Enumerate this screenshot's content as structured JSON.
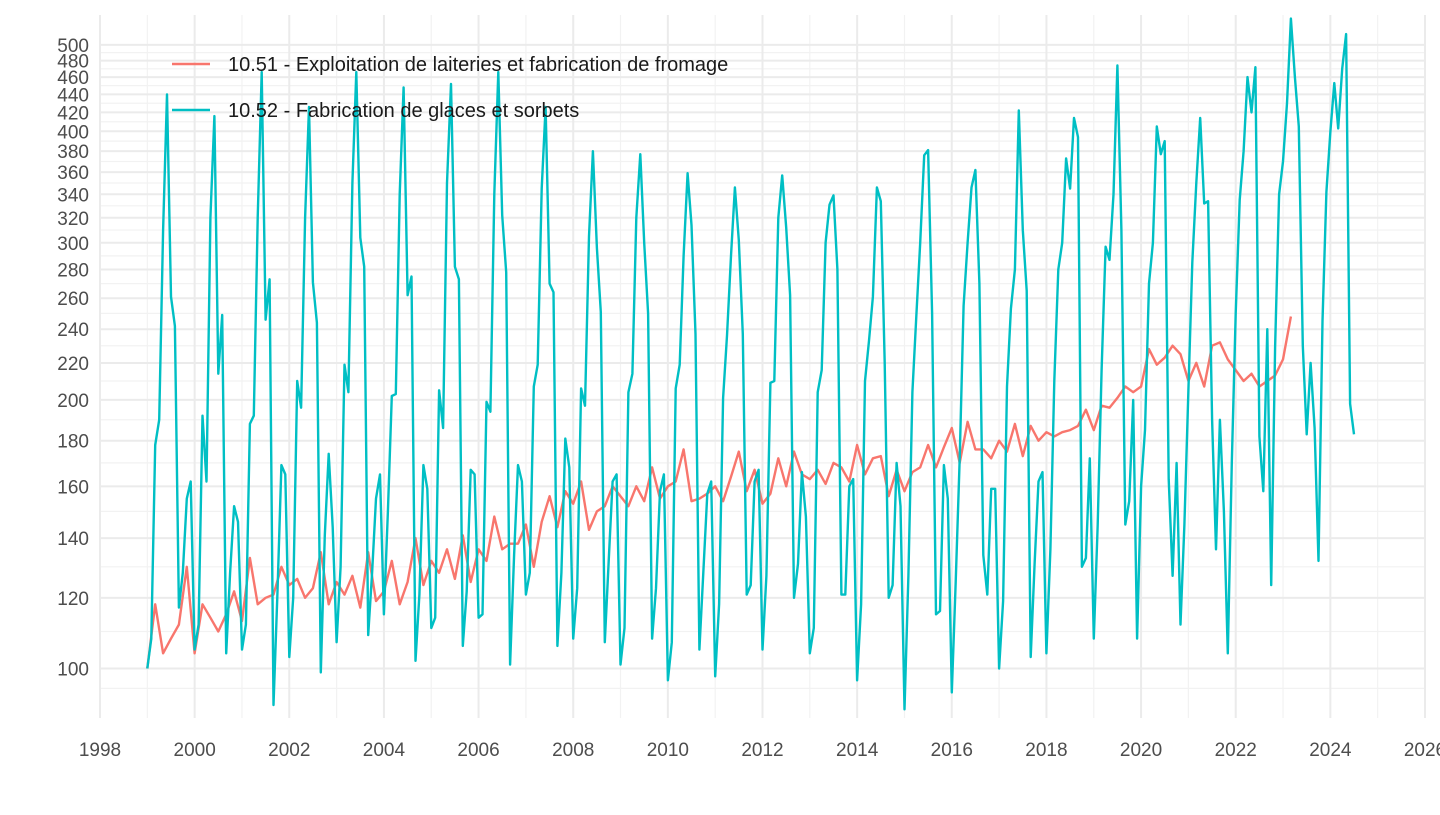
{
  "chart_data": {
    "type": "line",
    "title": "",
    "xlabel": "",
    "ylabel": "",
    "y_scale": "log",
    "xlim": [
      1998,
      2026
    ],
    "ylim": [
      88,
      540
    ],
    "x_ticks": [
      1998,
      2000,
      2002,
      2004,
      2006,
      2008,
      2010,
      2012,
      2014,
      2016,
      2018,
      2020,
      2022,
      2024,
      2026
    ],
    "x_tick_labels": [
      "1998",
      "2000",
      "2002",
      "2004",
      "2006",
      "2008",
      "2010",
      "2012",
      "2014",
      "2016",
      "2018",
      "2020",
      "2022",
      "2024",
      "2026"
    ],
    "y_ticks": [
      100,
      120,
      140,
      160,
      180,
      200,
      220,
      240,
      260,
      280,
      300,
      320,
      340,
      360,
      380,
      400,
      420,
      440,
      460,
      480,
      500
    ],
    "y_tick_labels": [
      "100",
      "120",
      "140",
      "160",
      "180",
      "200",
      "220",
      "240",
      "260",
      "280",
      "300",
      "320",
      "340",
      "360",
      "380",
      "400",
      "420",
      "440",
      "460",
      "480",
      "500"
    ],
    "grid": true,
    "legend_position": "top-left",
    "series": [
      {
        "name": "10.51 - Exploitation de laiteries et fabrication de fromage",
        "color": "#F8766D",
        "start_year": 1999,
        "step_months": 2,
        "values": [
          100,
          118,
          104,
          108,
          112,
          130,
          104,
          118,
          114,
          110,
          115,
          122,
          113,
          133,
          118,
          120,
          121,
          130,
          124,
          126,
          120,
          123,
          135,
          118,
          125,
          121,
          127,
          117,
          135,
          119,
          122,
          132,
          118,
          125,
          140,
          124,
          132,
          128,
          136,
          126,
          141,
          125,
          136,
          132,
          148,
          136,
          138,
          138,
          145,
          130,
          146,
          156,
          144,
          158,
          153,
          162,
          143,
          150,
          152,
          160,
          156,
          152,
          160,
          154,
          168,
          155,
          160,
          162,
          176,
          154,
          155,
          157,
          160,
          154,
          164,
          175,
          158,
          167,
          153,
          157,
          172,
          160,
          175,
          165,
          163,
          167,
          161,
          170,
          168,
          162,
          178,
          165,
          172,
          173,
          156,
          167,
          158,
          166,
          168,
          178,
          168,
          177,
          186,
          170,
          189,
          176,
          176,
          172,
          180,
          175,
          188,
          173,
          187,
          180,
          184,
          182,
          184,
          185,
          187,
          195,
          185,
          197,
          196,
          201,
          207,
          204,
          207,
          228,
          219,
          223,
          230,
          225,
          210,
          220,
          207,
          230,
          232,
          222,
          216,
          210,
          214,
          207,
          210,
          213,
          222,
          248
        ]
      },
      {
        "name": "10.52 - Fabrication de glaces et sorbets",
        "color": "#00BFC4",
        "start_year": 1999,
        "step_months": 1,
        "values": [
          100,
          108,
          178,
          190,
          310,
          440,
          261,
          242,
          117,
          128,
          155,
          162,
          105,
          112,
          192,
          162,
          320,
          416,
          214,
          249,
          104,
          128,
          152,
          146,
          105,
          112,
          188,
          192,
          320,
          466,
          246,
          273,
          91,
          122,
          169,
          165,
          103,
          120,
          210,
          196,
          320,
          426,
          271,
          244,
          99,
          141,
          174,
          144,
          107,
          130,
          219,
          204,
          350,
          466,
          304,
          282,
          109,
          128,
          155,
          165,
          115,
          150,
          202,
          203,
          340,
          448,
          262,
          275,
          102,
          121,
          169,
          159,
          111,
          114,
          205,
          186,
          350,
          452,
          282,
          273,
          106,
          122,
          167,
          165,
          114,
          115,
          199,
          194,
          340,
          466,
          322,
          278,
          101,
          134,
          169,
          162,
          121,
          128,
          207,
          219,
          345,
          426,
          270,
          264,
          106,
          128,
          181,
          168,
          108,
          123,
          206,
          197,
          305,
          380,
          296,
          251,
          107,
          132,
          162,
          165,
          101,
          111,
          204,
          214,
          320,
          377,
          300,
          250,
          108,
          123,
          158,
          165,
          97,
          107,
          206,
          219,
          290,
          359,
          314,
          237,
          105,
          128,
          157,
          162,
          98,
          118,
          201,
          236,
          290,
          346,
          302,
          237,
          121,
          124,
          162,
          167,
          105,
          127,
          209,
          210,
          320,
          357,
          312,
          262,
          120,
          131,
          166,
          148,
          104,
          111,
          204,
          216,
          300,
          331,
          339,
          280,
          121,
          121,
          160,
          163,
          97,
          118,
          210,
          233,
          261,
          346,
          334,
          220,
          120,
          124,
          170,
          152,
          90,
          127,
          204,
          248,
          300,
          376,
          381,
          250,
          115,
          116,
          169,
          155,
          94,
          125,
          172,
          255,
          300,
          346,
          362,
          270,
          134,
          121,
          159,
          159,
          100,
          119,
          207,
          253,
          280,
          422,
          310,
          265,
          103,
          131,
          162,
          166,
          104,
          136,
          210,
          280,
          300,
          373,
          345,
          414,
          394,
          130,
          133,
          172,
          108,
          145,
          216,
          297,
          287,
          340,
          474,
          310,
          145,
          154,
          200,
          108,
          160,
          185,
          270,
          300,
          405,
          377,
          390,
          163,
          127,
          170,
          112,
          145,
          205,
          285,
          350,
          414,
          332,
          334,
          190,
          136,
          190,
          150,
          104,
          170,
          250,
          335,
          380,
          460,
          420,
          472,
          182,
          158,
          240,
          124,
          229,
          340,
          370,
          430,
          535,
          460,
          405,
          230,
          183,
          220,
          186,
          132,
          245,
          342,
          400,
          453,
          403,
          470,
          514,
          198,
          183
        ]
      }
    ]
  }
}
